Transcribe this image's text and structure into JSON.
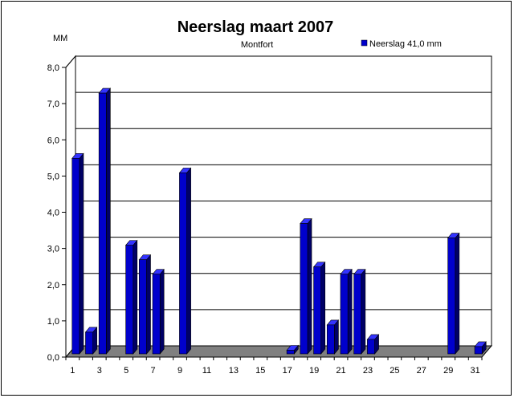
{
  "chart_data": {
    "type": "bar",
    "title": "Neerslag maart 2007",
    "subtitle": "Montfort",
    "ylabel": "MM",
    "legend": {
      "label": "Neerslag 41,0 mm",
      "position": "top-right"
    },
    "categories": [
      1,
      2,
      3,
      4,
      5,
      6,
      7,
      8,
      9,
      10,
      11,
      12,
      13,
      14,
      15,
      16,
      17,
      18,
      19,
      20,
      21,
      22,
      23,
      24,
      25,
      26,
      27,
      28,
      29,
      30,
      31
    ],
    "x_tick_labels": [
      "1",
      "3",
      "5",
      "7",
      "9",
      "11",
      "13",
      "15",
      "17",
      "19",
      "21",
      "23",
      "25",
      "27",
      "29",
      "31"
    ],
    "y_tick_labels": [
      "0,0",
      "1,0",
      "2,0",
      "3,0",
      "4,0",
      "5,0",
      "6,0",
      "7,0",
      "8,0"
    ],
    "ylim": [
      0,
      8
    ],
    "grid": true,
    "series": [
      {
        "name": "Neerslag 41,0 mm",
        "color": "#0000cc",
        "values": [
          5.4,
          0.6,
          7.2,
          0,
          3.0,
          2.6,
          2.2,
          0,
          5.0,
          0,
          0,
          0,
          0,
          0,
          0,
          0,
          0.1,
          3.6,
          2.4,
          0.8,
          2.2,
          2.2,
          0.4,
          0,
          0,
          0,
          0,
          0,
          3.2,
          0,
          0.2
        ]
      }
    ]
  }
}
